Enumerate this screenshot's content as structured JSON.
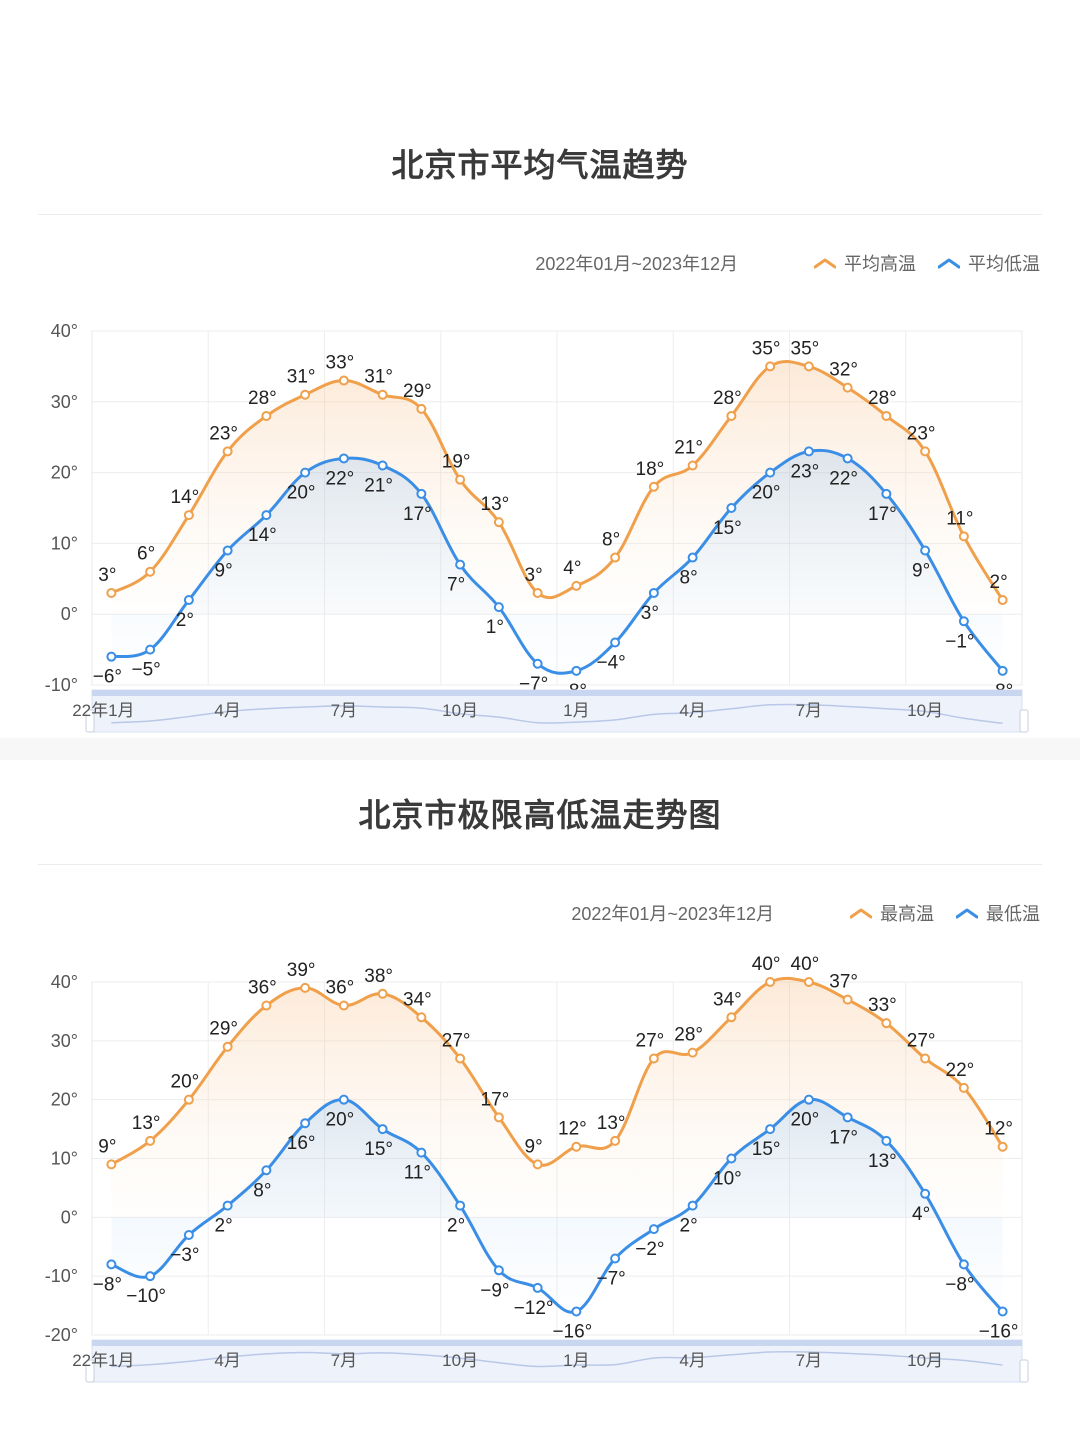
{
  "charts": [
    {
      "title": "北京市平均气温趋势",
      "date_range": "2022年01月~2023年12月",
      "legend": [
        {
          "label": "平均高温",
          "color": "#f0a04b"
        },
        {
          "label": "平均低温",
          "color": "#3a8ee6"
        }
      ]
    },
    {
      "title": "北京市极限高低温走势图",
      "date_range": "2022年01月~2023年12月",
      "legend": [
        {
          "label": "最高温",
          "color": "#f0a04b"
        },
        {
          "label": "最低温",
          "color": "#3a8ee6"
        }
      ]
    }
  ],
  "chart_data": [
    {
      "type": "line",
      "title": "北京市平均气温趋势",
      "x_tick_labels": [
        "22年1月",
        "4月",
        "7月",
        "10月",
        "1月",
        "4月",
        "7月",
        "10月"
      ],
      "y_tick_labels": [
        "40°",
        "30°",
        "20°",
        "10°",
        "0°",
        "-10°"
      ],
      "ylim": [
        -10,
        40
      ],
      "unit": "°",
      "x": [
        "2022-01",
        "2022-02",
        "2022-03",
        "2022-04",
        "2022-05",
        "2022-06",
        "2022-07",
        "2022-08",
        "2022-09",
        "2022-10",
        "2022-11",
        "2022-12",
        "2023-01",
        "2023-02",
        "2023-03",
        "2023-04",
        "2023-05",
        "2023-06",
        "2023-07",
        "2023-08",
        "2023-09",
        "2023-10",
        "2023-11",
        "2023-12"
      ],
      "series": [
        {
          "name": "平均高温",
          "color": "#f0a04b",
          "values": [
            3,
            6,
            14,
            23,
            28,
            31,
            33,
            31,
            29,
            19,
            13,
            3,
            4,
            8,
            18,
            21,
            28,
            35,
            35,
            32,
            28,
            23,
            11,
            2
          ]
        },
        {
          "name": "平均低温",
          "color": "#3a8ee6",
          "values": [
            -6,
            -5,
            2,
            9,
            14,
            20,
            22,
            21,
            17,
            7,
            1,
            -7,
            -8,
            -4,
            3,
            8,
            15,
            20,
            23,
            22,
            17,
            9,
            -1,
            -8
          ]
        }
      ],
      "grid": true,
      "legend_position": "top-right"
    },
    {
      "type": "line",
      "title": "北京市极限高低温走势图",
      "x_tick_labels": [
        "22年1月",
        "4月",
        "7月",
        "10月",
        "1月",
        "4月",
        "7月",
        "10月"
      ],
      "y_tick_labels": [
        "40°",
        "30°",
        "20°",
        "10°",
        "0°",
        "-10°",
        "-20°"
      ],
      "ylim": [
        -20,
        40
      ],
      "unit": "°",
      "x": [
        "2022-01",
        "2022-02",
        "2022-03",
        "2022-04",
        "2022-05",
        "2022-06",
        "2022-07",
        "2022-08",
        "2022-09",
        "2022-10",
        "2022-11",
        "2022-12",
        "2023-01",
        "2023-02",
        "2023-03",
        "2023-04",
        "2023-05",
        "2023-06",
        "2023-07",
        "2023-08",
        "2023-09",
        "2023-10",
        "2023-11",
        "2023-12"
      ],
      "series": [
        {
          "name": "最高温",
          "color": "#f0a04b",
          "values": [
            9,
            13,
            20,
            29,
            36,
            39,
            36,
            38,
            34,
            27,
            17,
            9,
            12,
            13,
            27,
            28,
            34,
            40,
            40,
            37,
            33,
            27,
            22,
            12
          ]
        },
        {
          "name": "最低温",
          "color": "#3a8ee6",
          "values": [
            -8,
            -10,
            -3,
            2,
            8,
            16,
            20,
            15,
            11,
            2,
            -9,
            -12,
            -16,
            -7,
            -2,
            2,
            10,
            15,
            20,
            17,
            13,
            4,
            -8,
            -16
          ]
        }
      ],
      "grid": true,
      "legend_position": "top-right"
    }
  ]
}
